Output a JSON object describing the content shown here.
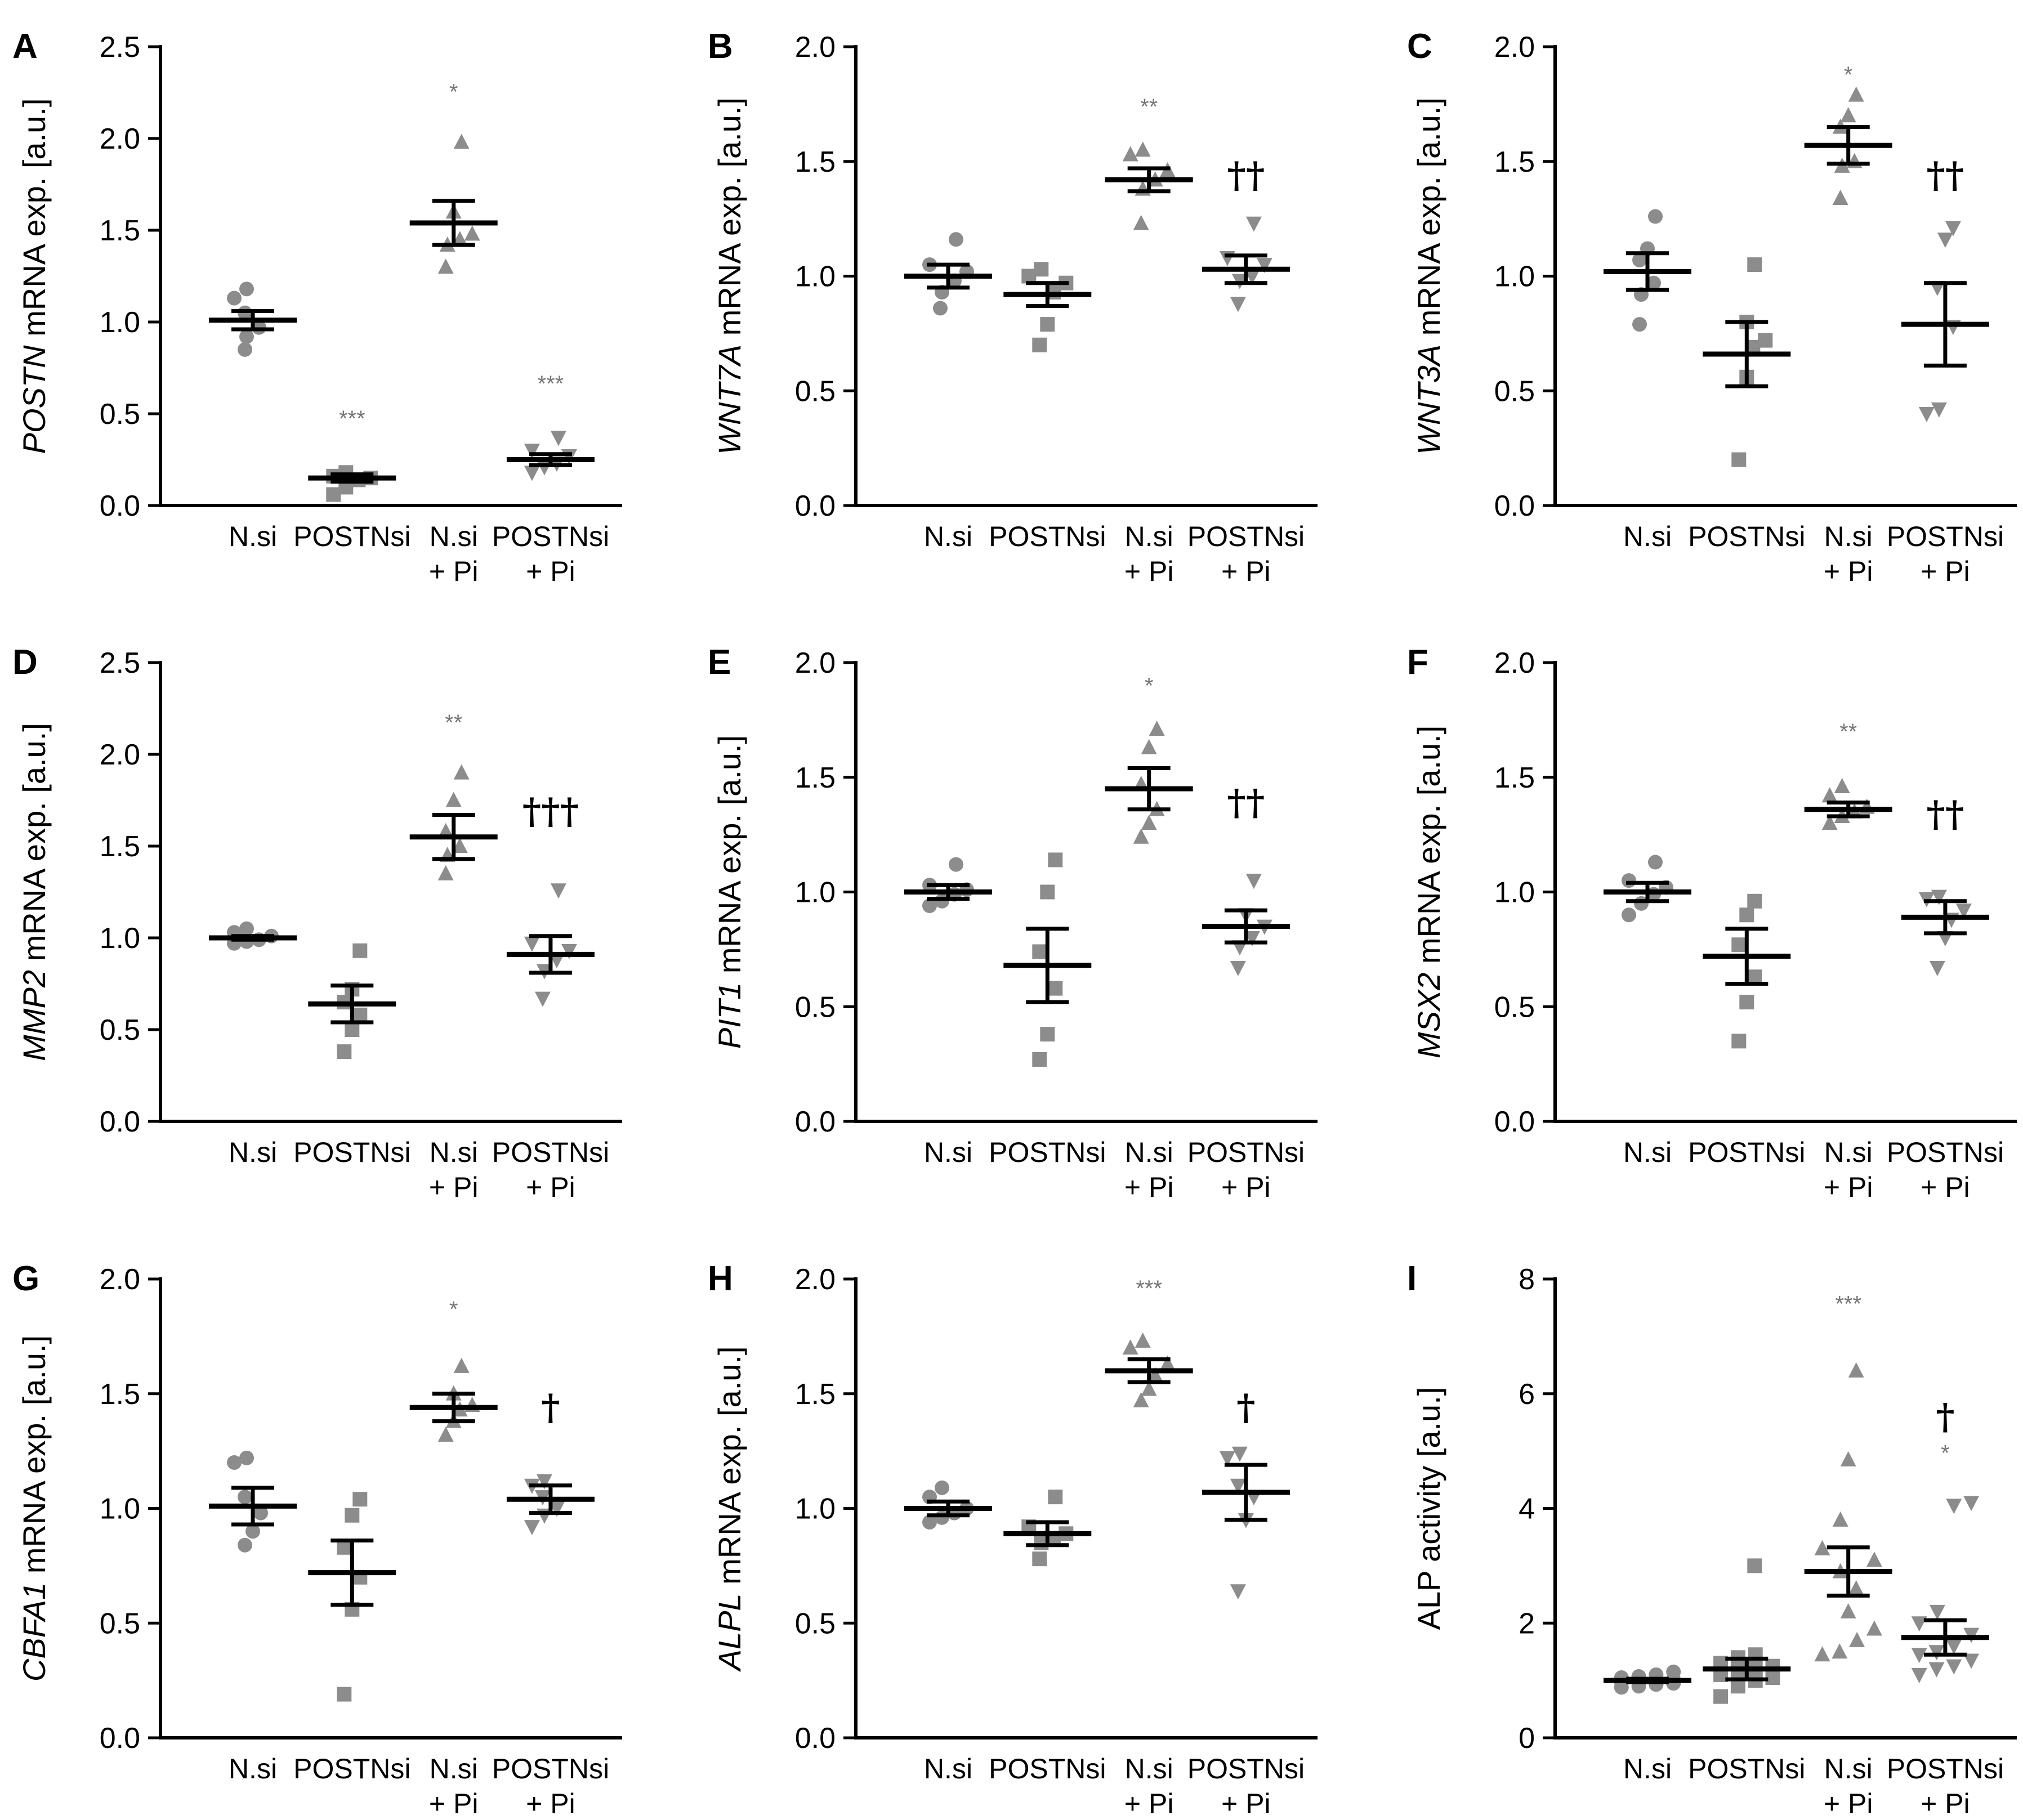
{
  "figure": {
    "categories": [
      "N.si",
      "POSTNsi",
      "N.si\n+ Pi",
      "POSTNsi\n+ Pi"
    ],
    "marker_color": "#8c8c8c",
    "sig_star_color": "#777777"
  },
  "chart_data": [
    {
      "panel": "A",
      "type": "scatter",
      "ylabel_italic": "POSTN",
      "ylabel_rest": " mRNA exp. [a.u.]",
      "ylim": [
        0,
        2.5
      ],
      "yticks": [
        "0.0",
        "0.5",
        "1.0",
        "1.5",
        "2.0",
        "2.5"
      ],
      "series": [
        {
          "name": "N.si",
          "marker": "circle",
          "points": [
            1.18,
            1.13,
            1.05,
            0.97,
            0.92,
            0.85
          ],
          "mean": 1.01,
          "sem": 0.05
        },
        {
          "name": "POSTNsi",
          "marker": "square",
          "points": [
            0.18,
            0.16,
            0.15,
            0.14,
            0.1,
            0.06
          ],
          "mean": 0.15,
          "sem": 0.02
        },
        {
          "name": "N.si + Pi",
          "marker": "triangle-up",
          "points": [
            1.98,
            1.6,
            1.48,
            1.45,
            1.42,
            1.3
          ],
          "mean": 1.54,
          "sem": 0.12
        },
        {
          "name": "POSTNsi + Pi",
          "marker": "triangle-down",
          "points": [
            0.37,
            0.3,
            0.27,
            0.23,
            0.21,
            0.18
          ],
          "mean": 0.25,
          "sem": 0.03
        }
      ],
      "annotations": [
        {
          "group": 2,
          "text": "*",
          "kind": "star",
          "y": 2.28
        },
        {
          "group": 1,
          "text": "***",
          "kind": "star",
          "y": 0.5
        },
        {
          "group": 3,
          "text": "***",
          "kind": "star",
          "y": 0.69
        }
      ]
    },
    {
      "panel": "B",
      "type": "scatter",
      "ylabel_italic": "WNT7A",
      "ylabel_rest": " mRNA exp. [a.u.]",
      "ylim": [
        0,
        2.0
      ],
      "yticks": [
        "0.0",
        "0.5",
        "1.0",
        "1.5",
        "2.0"
      ],
      "series": [
        {
          "name": "N.si",
          "marker": "circle",
          "points": [
            1.16,
            1.05,
            1.02,
            0.98,
            0.93,
            0.86
          ],
          "mean": 1.0,
          "sem": 0.05
        },
        {
          "name": "POSTNsi",
          "marker": "square",
          "points": [
            1.03,
            1.0,
            0.97,
            0.93,
            0.79,
            0.7
          ],
          "mean": 0.92,
          "sem": 0.05
        },
        {
          "name": "N.si + Pi",
          "marker": "triangle-up",
          "points": [
            1.55,
            1.53,
            1.46,
            1.42,
            1.38,
            1.23
          ],
          "mean": 1.42,
          "sem": 0.05
        },
        {
          "name": "POSTNsi + Pi",
          "marker": "triangle-down",
          "points": [
            1.23,
            1.08,
            1.05,
            1.0,
            0.98,
            0.88
          ],
          "mean": 1.03,
          "sem": 0.06
        }
      ],
      "annotations": [
        {
          "group": 2,
          "text": "**",
          "kind": "star",
          "y": 1.76
        },
        {
          "group": 3,
          "text": "††",
          "kind": "dagger",
          "y": 1.44
        }
      ]
    },
    {
      "panel": "C",
      "type": "scatter",
      "ylabel_italic": "WNT3A",
      "ylabel_rest": " mRNA exp. [a.u.]",
      "ylim": [
        0,
        2.0
      ],
      "yticks": [
        "0.0",
        "0.5",
        "1.0",
        "1.5",
        "2.0"
      ],
      "series": [
        {
          "name": "N.si",
          "marker": "circle",
          "points": [
            1.26,
            1.12,
            1.07,
            0.97,
            0.92,
            0.79
          ],
          "mean": 1.02,
          "sem": 0.08
        },
        {
          "name": "POSTNsi",
          "marker": "square",
          "points": [
            1.05,
            0.8,
            0.72,
            0.69,
            0.56,
            0.2
          ],
          "mean": 0.66,
          "sem": 0.14
        },
        {
          "name": "N.si + Pi",
          "marker": "triangle-up",
          "points": [
            1.79,
            1.7,
            1.65,
            1.5,
            1.48,
            1.34
          ],
          "mean": 1.57,
          "sem": 0.08
        },
        {
          "name": "POSTNsi + Pi",
          "marker": "triangle-down",
          "points": [
            1.21,
            1.16,
            0.95,
            0.78,
            0.42,
            0.4
          ],
          "mean": 0.79,
          "sem": 0.18
        }
      ],
      "annotations": [
        {
          "group": 2,
          "text": "*",
          "kind": "star",
          "y": 1.9
        },
        {
          "group": 3,
          "text": "††",
          "kind": "dagger",
          "y": 1.44
        }
      ]
    },
    {
      "panel": "D",
      "type": "scatter",
      "ylabel_italic": "MMP2",
      "ylabel_rest": " mRNA exp. [a.u.]",
      "ylim": [
        0,
        2.5
      ],
      "yticks": [
        "0.0",
        "0.5",
        "1.0",
        "1.5",
        "2.0",
        "2.5"
      ],
      "series": [
        {
          "name": "N.si",
          "marker": "circle",
          "points": [
            1.05,
            1.03,
            1.01,
            0.99,
            0.98,
            0.97
          ],
          "mean": 1.0,
          "sem": 0.01
        },
        {
          "name": "POSTNsi",
          "marker": "square",
          "points": [
            0.93,
            0.72,
            0.65,
            0.58,
            0.5,
            0.38
          ],
          "mean": 0.64,
          "sem": 0.1
        },
        {
          "name": "N.si + Pi",
          "marker": "triangle-up",
          "points": [
            1.9,
            1.75,
            1.58,
            1.5,
            1.45,
            1.35
          ],
          "mean": 1.55,
          "sem": 0.12
        },
        {
          "name": "POSTNsi + Pi",
          "marker": "triangle-down",
          "points": [
            1.26,
            0.97,
            0.93,
            0.88,
            0.82,
            0.67
          ],
          "mean": 0.91,
          "sem": 0.1
        }
      ],
      "annotations": [
        {
          "group": 2,
          "text": "**",
          "kind": "star",
          "y": 2.2
        },
        {
          "group": 3,
          "text": "†††",
          "kind": "dagger",
          "y": 1.69
        }
      ]
    },
    {
      "panel": "E",
      "type": "scatter",
      "ylabel_italic": "PIT1",
      "ylabel_rest": " mRNA exp. [a.u.]",
      "ylim": [
        0,
        2.0
      ],
      "yticks": [
        "0.0",
        "0.5",
        "1.0",
        "1.5",
        "2.0"
      ],
      "series": [
        {
          "name": "N.si",
          "marker": "circle",
          "points": [
            1.12,
            1.03,
            1.01,
            0.99,
            0.96,
            0.94
          ],
          "mean": 1.0,
          "sem": 0.03
        },
        {
          "name": "POSTNsi",
          "marker": "square",
          "points": [
            1.14,
            1.0,
            0.74,
            0.58,
            0.38,
            0.27
          ],
          "mean": 0.68,
          "sem": 0.16
        },
        {
          "name": "N.si + Pi",
          "marker": "triangle-up",
          "points": [
            1.71,
            1.63,
            1.47,
            1.36,
            1.3,
            1.24
          ],
          "mean": 1.45,
          "sem": 0.09
        },
        {
          "name": "POSTNsi + Pi",
          "marker": "triangle-down",
          "points": [
            1.05,
            0.9,
            0.85,
            0.8,
            0.76,
            0.67
          ],
          "mean": 0.85,
          "sem": 0.07
        }
      ],
      "annotations": [
        {
          "group": 2,
          "text": "*",
          "kind": "star",
          "y": 1.92
        },
        {
          "group": 3,
          "text": "††",
          "kind": "dagger",
          "y": 1.39
        }
      ]
    },
    {
      "panel": "F",
      "type": "scatter",
      "ylabel_italic": "MSX2",
      "ylabel_rest": " mRNA exp. [a.u.]",
      "ylim": [
        0,
        2.0
      ],
      "yticks": [
        "0.0",
        "0.5",
        "1.0",
        "1.5",
        "2.0"
      ],
      "series": [
        {
          "name": "N.si",
          "marker": "circle",
          "points": [
            1.13,
            1.05,
            1.02,
            0.99,
            0.95,
            0.9
          ],
          "mean": 1.0,
          "sem": 0.04
        },
        {
          "name": "POSTNsi",
          "marker": "square",
          "points": [
            0.96,
            0.9,
            0.77,
            0.63,
            0.52,
            0.35
          ],
          "mean": 0.72,
          "sem": 0.12
        },
        {
          "name": "N.si + Pi",
          "marker": "triangle-up",
          "points": [
            1.46,
            1.42,
            1.37,
            1.35,
            1.33,
            1.3
          ],
          "mean": 1.36,
          "sem": 0.03
        },
        {
          "name": "POSTNsi + Pi",
          "marker": "triangle-down",
          "points": [
            0.98,
            0.97,
            0.92,
            0.88,
            0.8,
            0.67
          ],
          "mean": 0.89,
          "sem": 0.07
        }
      ],
      "annotations": [
        {
          "group": 2,
          "text": "**",
          "kind": "star",
          "y": 1.72
        },
        {
          "group": 3,
          "text": "††",
          "kind": "dagger",
          "y": 1.34
        }
      ]
    },
    {
      "panel": "G",
      "type": "scatter",
      "ylabel_italic": "CBFA1",
      "ylabel_rest": " mRNA exp. [a.u.]",
      "ylim": [
        0,
        2.0
      ],
      "yticks": [
        "0.0",
        "0.5",
        "1.0",
        "1.5",
        "2.0"
      ],
      "series": [
        {
          "name": "N.si",
          "marker": "circle",
          "points": [
            1.22,
            1.2,
            1.05,
            0.98,
            0.9,
            0.84
          ],
          "mean": 1.01,
          "sem": 0.08
        },
        {
          "name": "POSTNsi",
          "marker": "square",
          "points": [
            1.04,
            0.97,
            0.83,
            0.7,
            0.56,
            0.19
          ],
          "mean": 0.72,
          "sem": 0.14
        },
        {
          "name": "N.si + Pi",
          "marker": "triangle-up",
          "points": [
            1.62,
            1.5,
            1.45,
            1.43,
            1.38,
            1.32
          ],
          "mean": 1.44,
          "sem": 0.06
        },
        {
          "name": "POSTNsi + Pi",
          "marker": "triangle-down",
          "points": [
            1.12,
            1.1,
            1.05,
            1.0,
            0.97,
            0.92
          ],
          "mean": 1.04,
          "sem": 0.06
        }
      ],
      "annotations": [
        {
          "group": 2,
          "text": "*",
          "kind": "star",
          "y": 1.89
        },
        {
          "group": 3,
          "text": "†",
          "kind": "dagger",
          "y": 1.44
        }
      ]
    },
    {
      "panel": "H",
      "type": "scatter",
      "ylabel_italic": "ALPL",
      "ylabel_rest": " mRNA exp. [a.u.]",
      "ylim": [
        0,
        2.0
      ],
      "yticks": [
        "0.0",
        "0.5",
        "1.0",
        "1.5",
        "2.0"
      ],
      "series": [
        {
          "name": "N.si",
          "marker": "circle",
          "points": [
            1.09,
            1.05,
            1.0,
            0.98,
            0.96,
            0.94
          ],
          "mean": 1.0,
          "sem": 0.03
        },
        {
          "name": "POSTNsi",
          "marker": "square",
          "points": [
            1.05,
            0.92,
            0.89,
            0.87,
            0.85,
            0.78
          ],
          "mean": 0.89,
          "sem": 0.05
        },
        {
          "name": "N.si + Pi",
          "marker": "triangle-up",
          "points": [
            1.73,
            1.7,
            1.63,
            1.58,
            1.52,
            1.47
          ],
          "mean": 1.6,
          "sem": 0.05
        },
        {
          "name": "POSTNsi + Pi",
          "marker": "triangle-down",
          "points": [
            1.24,
            1.22,
            1.1,
            1.05,
            0.95,
            0.64
          ],
          "mean": 1.07,
          "sem": 0.12
        }
      ],
      "annotations": [
        {
          "group": 2,
          "text": "***",
          "kind": "star",
          "y": 1.98
        },
        {
          "group": 3,
          "text": "†",
          "kind": "dagger",
          "y": 1.44
        }
      ]
    },
    {
      "panel": "I",
      "type": "scatter",
      "ylabel_italic": "",
      "ylabel_rest": "ALP activity [a.u.]",
      "ylim": [
        0,
        8
      ],
      "yticks": [
        "0",
        "2",
        "4",
        "6",
        "8"
      ],
      "series": [
        {
          "name": "N.si",
          "marker": "circle",
          "points": [
            1.15,
            1.1,
            1.07,
            1.05,
            1.02,
            1.0,
            0.98,
            0.97,
            0.95,
            0.93,
            0.9,
            0.88
          ],
          "mean": 1.0,
          "sem": 0.03
        },
        {
          "name": "POSTNsi",
          "marker": "square",
          "points": [
            3.0,
            1.45,
            1.4,
            1.3,
            1.25,
            1.2,
            1.15,
            1.1,
            1.05,
            1.0,
            0.9,
            0.72
          ],
          "mean": 1.2,
          "sem": 0.18
        },
        {
          "name": "N.si + Pi",
          "marker": "triangle-up",
          "points": [
            6.4,
            4.85,
            3.8,
            3.3,
            3.1,
            2.9,
            2.6,
            2.2,
            1.9,
            1.7,
            1.5,
            1.45
          ],
          "mean": 2.9,
          "sem": 0.42
        },
        {
          "name": "POSTNsi + Pi",
          "marker": "triangle-down",
          "points": [
            4.1,
            4.05,
            2.2,
            2.0,
            1.8,
            1.6,
            1.5,
            1.45,
            1.35,
            1.25,
            1.2,
            1.1
          ],
          "mean": 1.75,
          "sem": 0.3
        }
      ],
      "annotations": [
        {
          "group": 2,
          "text": "***",
          "kind": "star",
          "y": 7.65
        },
        {
          "group": 3,
          "text": "*",
          "kind": "star",
          "y": 5.05
        },
        {
          "group": 3,
          "text": "†",
          "kind": "dagger",
          "y": 5.6
        }
      ]
    }
  ]
}
